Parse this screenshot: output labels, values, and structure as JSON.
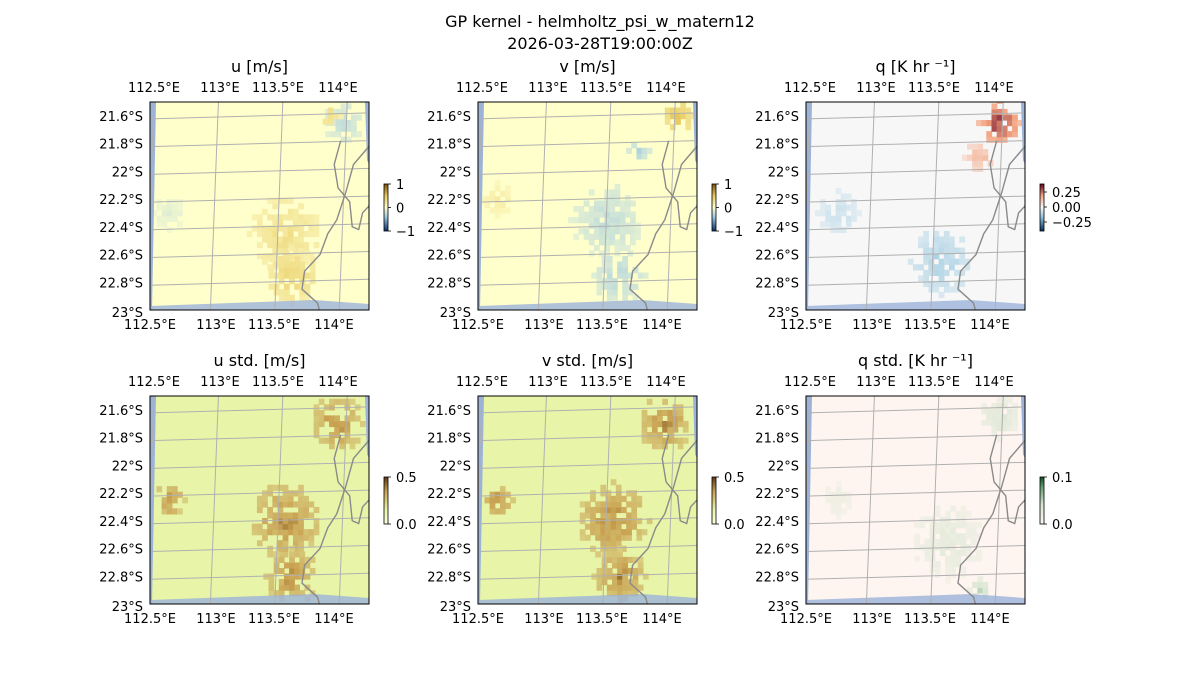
{
  "figure": {
    "title": "GP kernel - helmholtz_psi_w_matern12",
    "timestamp": "2026-03-28T19:00:00Z"
  },
  "colors": {
    "land_line": "#8a8a8a",
    "grid": "#b0b0b0",
    "ocean_edge": "#9bb3d9"
  },
  "chart_data": [
    {
      "type": "heatmap",
      "panel": "u",
      "title": "u [m/s]",
      "x_ticks": [
        "112.5°E",
        "113°E",
        "113.5°E",
        "114°E"
      ],
      "y_ticks": [
        "21.6°S",
        "21.8°S",
        "22°S",
        "22.2°S",
        "22.4°S",
        "22.6°S",
        "22.8°S",
        "23°S"
      ],
      "xlim": [
        112.5,
        114.2
      ],
      "ylim": [
        -23.0,
        -21.5
      ],
      "colorbar": {
        "ticks": [
          "1",
          "0",
          "−1"
        ],
        "range": [
          -1,
          1
        ],
        "colormap": "yellow-blue"
      },
      "background_value": 0.0,
      "patches": [
        {
          "lon": 113.55,
          "lat": -22.45,
          "value": 0.35,
          "extent": 0.25
        },
        {
          "lon": 113.6,
          "lat": -22.75,
          "value": 0.45,
          "extent": 0.2
        },
        {
          "lon": 112.65,
          "lat": -22.3,
          "value": -0.15,
          "extent": 0.12
        },
        {
          "lon": 114.0,
          "lat": -21.65,
          "value": -0.3,
          "extent": 0.15
        },
        {
          "lon": 113.9,
          "lat": -21.6,
          "value": 0.4,
          "extent": 0.08
        }
      ]
    },
    {
      "type": "heatmap",
      "panel": "v",
      "title": "v [m/s]",
      "x_ticks": [
        "112.5°E",
        "113°E",
        "113.5°E",
        "114°E"
      ],
      "y_ticks": [
        "21.6°S",
        "21.8°S",
        "22°S",
        "22.2°S",
        "22.4°S",
        "22.6°S",
        "22.8°S",
        "23°S"
      ],
      "xlim": [
        112.5,
        114.2
      ],
      "ylim": [
        -23.0,
        -21.5
      ],
      "colorbar": {
        "ticks": [
          "1",
          "0",
          "−1"
        ],
        "range": [
          -1,
          1
        ],
        "colormap": "yellow-blue"
      },
      "background_value": 0.0,
      "patches": [
        {
          "lon": 113.5,
          "lat": -22.35,
          "value": -0.3,
          "extent": 0.25
        },
        {
          "lon": 113.6,
          "lat": -22.75,
          "value": -0.35,
          "extent": 0.18
        },
        {
          "lon": 112.65,
          "lat": -22.2,
          "value": 0.2,
          "extent": 0.12
        },
        {
          "lon": 114.05,
          "lat": -21.6,
          "value": 0.6,
          "extent": 0.1
        },
        {
          "lon": 113.75,
          "lat": -21.85,
          "value": -0.4,
          "extent": 0.08
        }
      ]
    },
    {
      "type": "heatmap",
      "panel": "q",
      "title": "q [K hr ⁻¹]",
      "x_ticks": [
        "112.5°E",
        "113°E",
        "113.5°E",
        "114°E"
      ],
      "y_ticks": [
        "21.6°S",
        "21.8°S",
        "22°S",
        "22.2°S",
        "22.4°S",
        "22.6°S",
        "22.8°S",
        "23°S"
      ],
      "xlim": [
        112.5,
        114.2
      ],
      "ylim": [
        -23.0,
        -21.5
      ],
      "colorbar": {
        "ticks": [
          "0.25",
          "0.00",
          "−0.25"
        ],
        "range": [
          -0.35,
          0.35
        ],
        "colormap": "red-blue"
      },
      "background_value": 0.0,
      "patches": [
        {
          "lon": 114.0,
          "lat": -21.65,
          "value": 0.35,
          "extent": 0.15
        },
        {
          "lon": 113.85,
          "lat": -21.9,
          "value": 0.15,
          "extent": 0.1
        },
        {
          "lon": 113.55,
          "lat": -22.65,
          "value": -0.12,
          "extent": 0.22
        },
        {
          "lon": 112.75,
          "lat": -22.3,
          "value": -0.08,
          "extent": 0.15
        }
      ]
    },
    {
      "type": "heatmap",
      "panel": "u std.",
      "title": "u std. [m/s]",
      "x_ticks": [
        "112.5°E",
        "113°E",
        "113.5°E",
        "114°E"
      ],
      "y_ticks": [
        "21.6°S",
        "21.8°S",
        "22°S",
        "22.2°S",
        "22.4°S",
        "22.6°S",
        "22.8°S",
        "23°S"
      ],
      "xlim": [
        112.5,
        114.2
      ],
      "ylim": [
        -23.0,
        -21.5
      ],
      "colorbar": {
        "ticks": [
          "0.5",
          "0.0"
        ],
        "range": [
          0,
          0.5
        ],
        "colormap": "yellow-brown"
      },
      "background_value": 0.15,
      "patches": [
        {
          "lon": 113.55,
          "lat": -22.4,
          "value": 0.42,
          "extent": 0.25
        },
        {
          "lon": 113.6,
          "lat": -22.8,
          "value": 0.42,
          "extent": 0.2
        },
        {
          "lon": 112.65,
          "lat": -22.25,
          "value": 0.42,
          "extent": 0.12
        },
        {
          "lon": 113.95,
          "lat": -21.7,
          "value": 0.42,
          "extent": 0.2
        }
      ]
    },
    {
      "type": "heatmap",
      "panel": "v std.",
      "title": "v std. [m/s]",
      "x_ticks": [
        "112.5°E",
        "113°E",
        "113.5°E",
        "114°E"
      ],
      "y_ticks": [
        "21.6°S",
        "21.8°S",
        "22°S",
        "22.2°S",
        "22.4°S",
        "22.6°S",
        "22.8°S",
        "23°S"
      ],
      "xlim": [
        112.5,
        114.2
      ],
      "ylim": [
        -23.0,
        -21.5
      ],
      "colorbar": {
        "ticks": [
          "0.5",
          "0.0"
        ],
        "range": [
          0,
          0.5
        ],
        "colormap": "yellow-brown"
      },
      "background_value": 0.15,
      "patches": [
        {
          "lon": 113.55,
          "lat": -22.4,
          "value": 0.42,
          "extent": 0.25
        },
        {
          "lon": 113.6,
          "lat": -22.8,
          "value": 0.42,
          "extent": 0.2
        },
        {
          "lon": 112.65,
          "lat": -22.25,
          "value": 0.42,
          "extent": 0.12
        },
        {
          "lon": 113.95,
          "lat": -21.7,
          "value": 0.42,
          "extent": 0.2
        }
      ]
    },
    {
      "type": "heatmap",
      "panel": "q std.",
      "title": "q std. [K hr ⁻¹]",
      "x_ticks": [
        "112.5°E",
        "113°E",
        "113.5°E",
        "114°E"
      ],
      "y_ticks": [
        "21.6°S",
        "21.8°S",
        "22°S",
        "22.2°S",
        "22.4°S",
        "22.6°S",
        "22.8°S",
        "23°S"
      ],
      "xlim": [
        112.5,
        114.2
      ],
      "ylim": [
        -23.0,
        -21.5
      ],
      "colorbar": {
        "ticks": [
          "0.1",
          "0.0"
        ],
        "range": [
          0,
          0.12
        ],
        "colormap": "pink-green"
      },
      "background_value": 0.0,
      "patches": [
        {
          "lon": 113.6,
          "lat": -22.55,
          "value": 0.04,
          "extent": 0.25
        },
        {
          "lon": 112.75,
          "lat": -22.25,
          "value": 0.03,
          "extent": 0.12
        },
        {
          "lon": 114.0,
          "lat": -21.65,
          "value": 0.05,
          "extent": 0.15
        },
        {
          "lon": 113.85,
          "lat": -22.9,
          "value": 0.07,
          "extent": 0.08
        }
      ]
    }
  ]
}
